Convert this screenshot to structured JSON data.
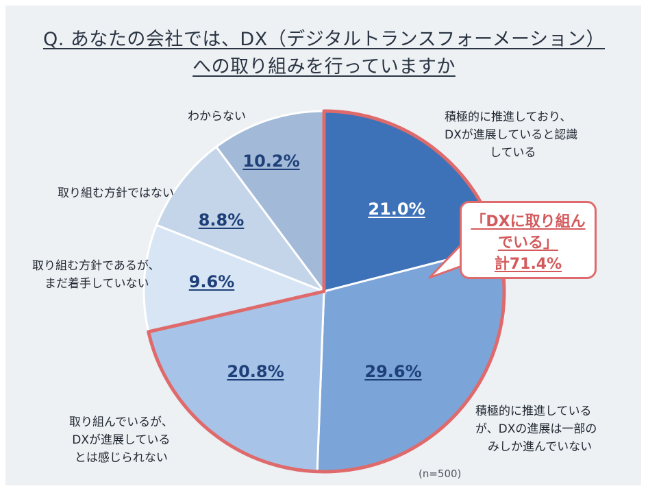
{
  "title_lines": [
    "Q. あなたの会社では、DX（デジタルトランスフォーメーション）",
    "への取り組みを行っていますか"
  ],
  "callout": {
    "lines": [
      "「DXに取り組ん",
      "でいる」",
      "計71.4%"
    ],
    "border_color": "#df6a6c",
    "text_color": "#d35a5c"
  },
  "sample_note": "(n=500)",
  "colors": {
    "background": "#edf1f4",
    "highlight_border": "#df6a6c",
    "slice_separator": "#ffffff"
  },
  "chart_data": {
    "type": "pie",
    "title": "Q. あなたの会社では、DX（デジタルトランスフォーメーション）への取り組みを行っていますか",
    "start": "12 o'clock, clockwise",
    "slices": [
      {
        "label_lines": [
          "積極的に推進しており、",
          "DXが進展していると認識",
          "している"
        ],
        "value": 21.0,
        "value_label": "21.0%",
        "color": "#3e72b8",
        "highlighted": true
      },
      {
        "label_lines": [
          "積極的に推進している",
          "が、DXの進展は一部の",
          "みしか進んでいない"
        ],
        "value": 29.6,
        "value_label": "29.6%",
        "color": "#7ba4d9",
        "highlighted": true
      },
      {
        "label_lines": [
          "取り組んでいるが、",
          "DXが進展している",
          "とは感じられない"
        ],
        "value": 20.8,
        "value_label": "20.8%",
        "color": "#a7c4e8",
        "highlighted": true
      },
      {
        "label_lines": [
          "取り組む方針であるが、",
          "まだ着手していない"
        ],
        "value": 9.6,
        "value_label": "9.6%",
        "color": "#d8e5f5",
        "highlighted": false
      },
      {
        "label_lines": [
          "取り組む方針ではない"
        ],
        "value": 8.8,
        "value_label": "8.8%",
        "color": "#c4d5ea",
        "highlighted": false
      },
      {
        "label_lines": [
          "わからない"
        ],
        "value": 10.2,
        "value_label": "10.2%",
        "color": "#a2b9d8",
        "highlighted": false
      }
    ],
    "highlighted_total_label": "計71.4%",
    "sample_size": "(n=500)"
  }
}
